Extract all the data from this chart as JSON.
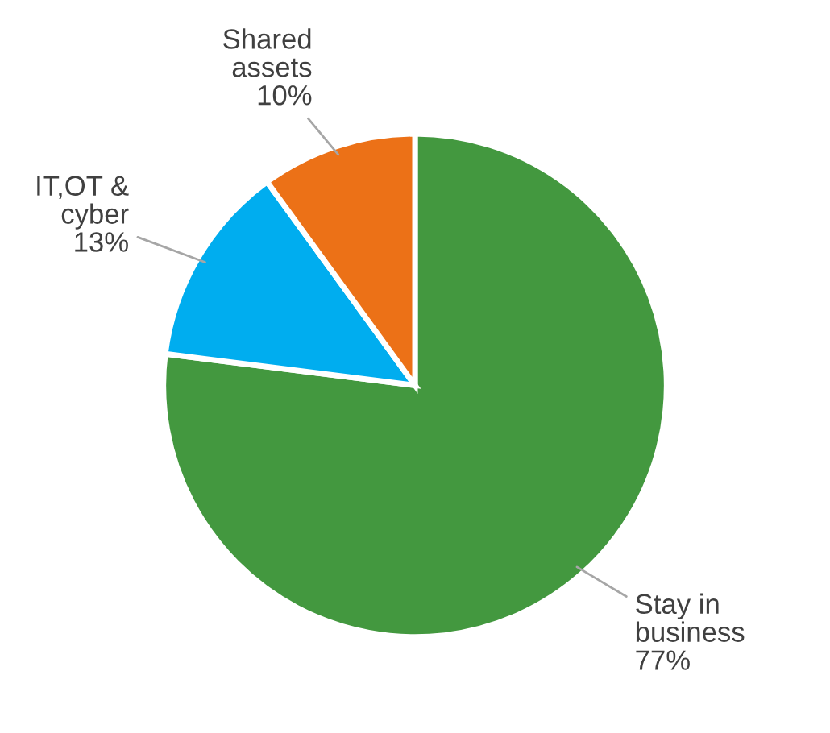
{
  "chart_data": {
    "type": "pie",
    "categories": [
      "Stay in business",
      "IT,OT & cyber",
      "Shared assets"
    ],
    "values": [
      77,
      13,
      10
    ],
    "colors": [
      "#43983f",
      "#00adef",
      "#ec7117"
    ],
    "value_labels": [
      "77%",
      "13%",
      "10%"
    ],
    "legend": false
  }
}
